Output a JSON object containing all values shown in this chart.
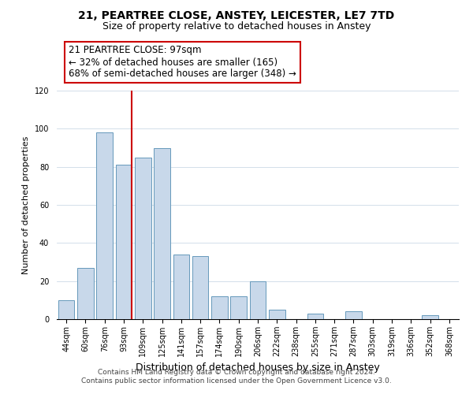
{
  "title1": "21, PEARTREE CLOSE, ANSTEY, LEICESTER, LE7 7TD",
  "title2": "Size of property relative to detached houses in Anstey",
  "xlabel": "Distribution of detached houses by size in Anstey",
  "ylabel": "Number of detached properties",
  "bar_labels": [
    "44sqm",
    "60sqm",
    "76sqm",
    "93sqm",
    "109sqm",
    "125sqm",
    "141sqm",
    "157sqm",
    "174sqm",
    "190sqm",
    "206sqm",
    "222sqm",
    "238sqm",
    "255sqm",
    "271sqm",
    "287sqm",
    "303sqm",
    "319sqm",
    "336sqm",
    "352sqm",
    "368sqm"
  ],
  "bar_values": [
    10,
    27,
    98,
    81,
    85,
    90,
    34,
    33,
    12,
    12,
    20,
    5,
    0,
    3,
    0,
    4,
    0,
    0,
    0,
    2,
    0
  ],
  "bar_color": "#c8d8ea",
  "bar_edge_color": "#6699bb",
  "highlight_line_index": 3,
  "highlight_color": "#cc0000",
  "ylim": [
    0,
    120
  ],
  "yticks": [
    0,
    20,
    40,
    60,
    80,
    100,
    120
  ],
  "annotation_title": "21 PEARTREE CLOSE: 97sqm",
  "annotation_line1": "← 32% of detached houses are smaller (165)",
  "annotation_line2": "68% of semi-detached houses are larger (348) →",
  "annotation_box_color": "#ffffff",
  "annotation_box_edge": "#cc0000",
  "footer1": "Contains HM Land Registry data © Crown copyright and database right 2024.",
  "footer2": "Contains public sector information licensed under the Open Government Licence v3.0.",
  "title1_fontsize": 10,
  "title2_fontsize": 9,
  "xlabel_fontsize": 9,
  "ylabel_fontsize": 8,
  "tick_fontsize": 7,
  "annotation_fontsize": 8.5,
  "footer_fontsize": 6.5
}
